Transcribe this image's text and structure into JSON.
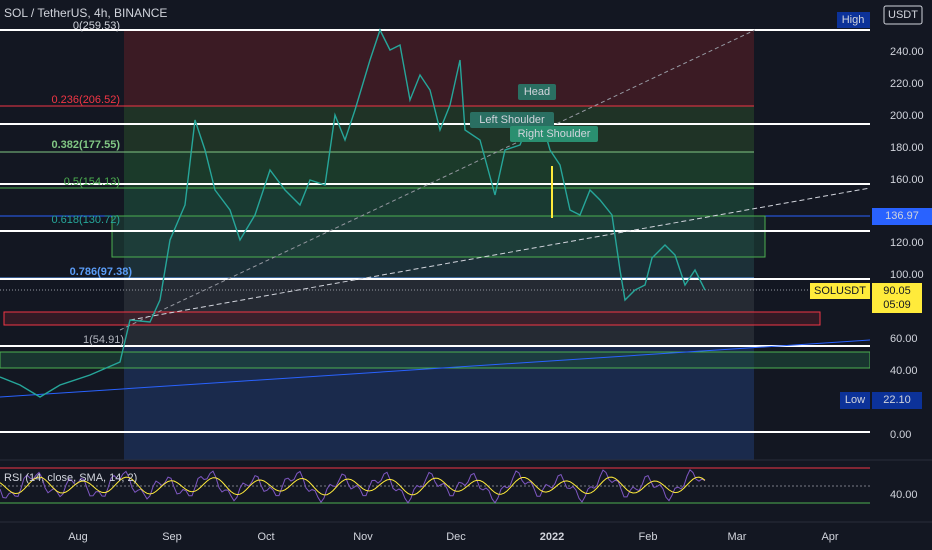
{
  "header": {
    "symbol": "SOL / TetherUS, 4h, BINANCE",
    "currency": "USDT"
  },
  "price_axis": [
    "240.00",
    "220.00",
    "200.00",
    "180.00",
    "160.00",
    "120.00",
    "100.00",
    "60.00",
    "40.00",
    "0.00"
  ],
  "markers": {
    "high": "High",
    "last_price": "136.97",
    "ticker": "SOLUSDT",
    "ticker_price": "90.05",
    "countdown": "05:09",
    "low": "Low",
    "low_value": "22.10"
  },
  "fib_levels": [
    "0(259.53)",
    "0.236(206.52)",
    "0.382(177.55)",
    "0.5(154.13)",
    "0.618(130.72)",
    "0.786(97.38)",
    "1(54.91)"
  ],
  "patterns": [
    "Head",
    "Left Shoulder",
    "Right Shoulder"
  ],
  "rsi": {
    "title": "RSI (14, close, SMA, 14, 2)",
    "axis_label": "40.00"
  },
  "time_axis": [
    "Aug",
    "Sep",
    "Oct",
    "Nov",
    "Dec",
    "2022",
    "Feb",
    "Mar",
    "Apr"
  ]
}
